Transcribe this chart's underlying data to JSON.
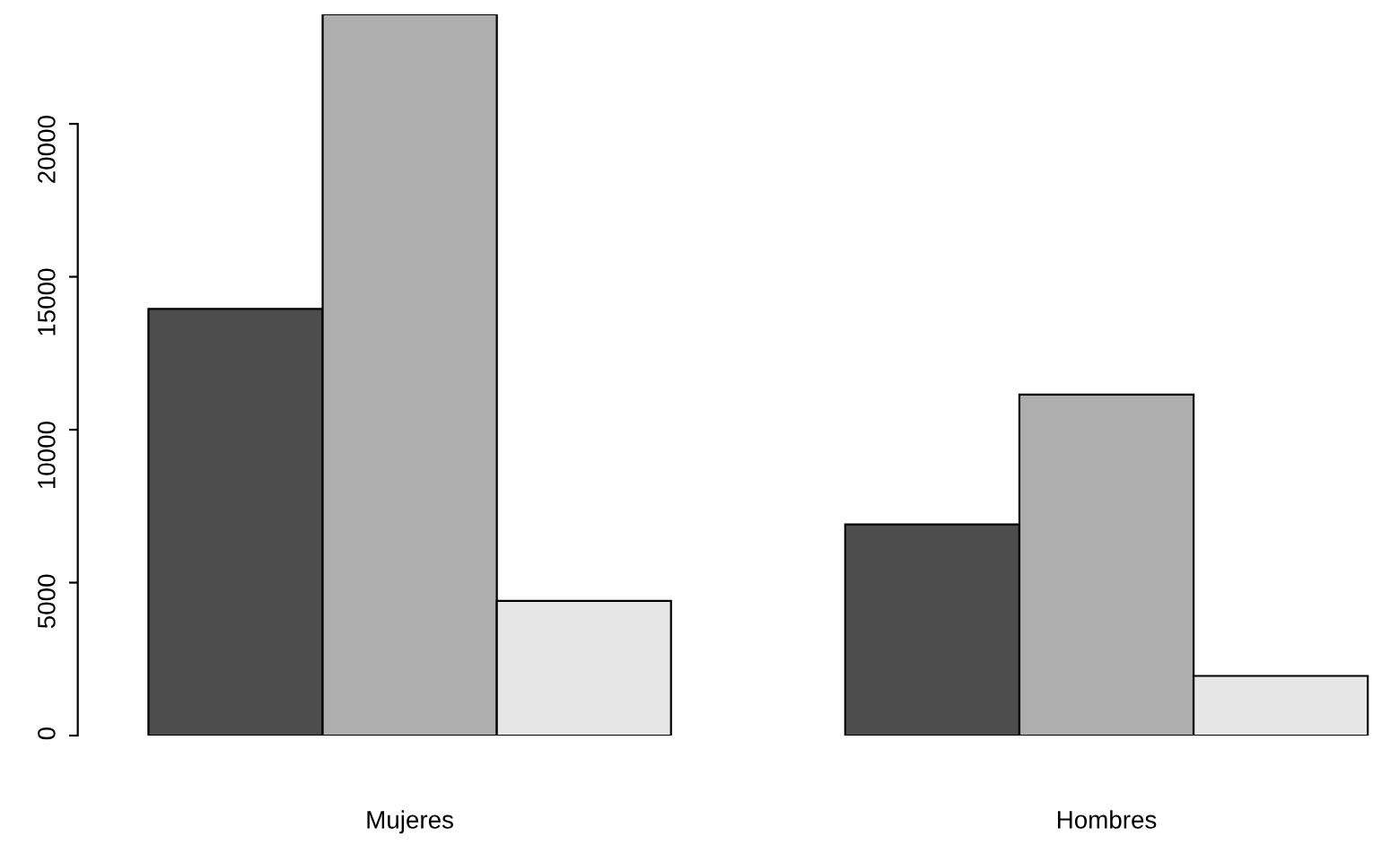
{
  "chart_data": {
    "type": "bar",
    "categories": [
      "Mujeres",
      "Hombres"
    ],
    "series": [
      {
        "color": "#4d4d4d",
        "values": [
          13950,
          6900
        ]
      },
      {
        "color": "#aeaeae",
        "values": [
          23580,
          11150
        ]
      },
      {
        "color": "#e6e6e6",
        "values": [
          4400,
          1950
        ]
      }
    ],
    "ylim": [
      0,
      23580
    ],
    "yticks": [
      0,
      5000,
      10000,
      15000,
      20000
    ],
    "grid": false,
    "legend": false
  }
}
